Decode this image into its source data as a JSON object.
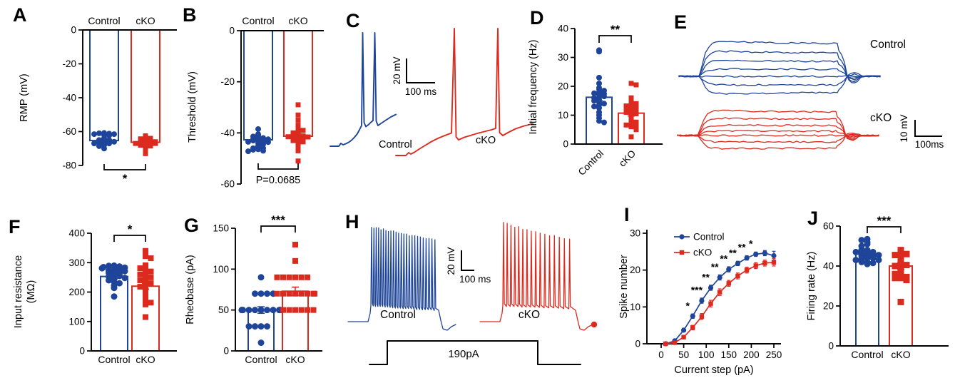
{
  "colors": {
    "control": "#1e4599",
    "cko": "#dc2a1e",
    "axis": "#000000"
  },
  "panel_letters": [
    "A",
    "B",
    "C",
    "D",
    "E",
    "F",
    "G",
    "H",
    "I",
    "J"
  ],
  "chart_data": [
    {
      "panel": "A",
      "type": "bar",
      "ylabel": "RMP (mV)",
      "ylim": [
        -80,
        0
      ],
      "yticks": [
        0,
        -20,
        -40,
        -60,
        -80
      ],
      "categories": [
        "Control",
        "cKO"
      ],
      "means": [
        -65.3,
        -66.3
      ],
      "sem": [
        0.7,
        0.7
      ],
      "sig": "*",
      "points_control": [
        -60.8,
        -61,
        -61.2,
        -61.5,
        -61.5,
        -62,
        -62.3,
        -64,
        -64.5,
        -65,
        -65,
        -65.3,
        -65.5,
        -66,
        -66,
        -66.4,
        -66.5,
        -67,
        -67,
        -67.5,
        -68,
        -68.6,
        -70
      ],
      "points_cko": [
        -62.5,
        -63,
        -63.5,
        -64,
        -64.3,
        -64.6,
        -65,
        -65,
        -65.4,
        -65.6,
        -66,
        -66,
        -66.2,
        -66.5,
        -66.6,
        -67,
        -67,
        -67.4,
        -68,
        -68,
        -68.5,
        -69,
        -70,
        -71,
        -73
      ]
    },
    {
      "panel": "B",
      "type": "bar",
      "ylabel": "Threshold (mV)",
      "ylim": [
        -60,
        0
      ],
      "yticks": [
        0,
        -20,
        -40,
        -60
      ],
      "categories": [
        "Control",
        "cKO"
      ],
      "means": [
        -42.7,
        -41.3
      ],
      "sem": [
        0.6,
        0.9
      ],
      "sig": "P=0.0685",
      "points_control": [
        -38.5,
        -40.5,
        -41,
        -41.4,
        -42,
        -42,
        -42.4,
        -42.5,
        -43,
        -43,
        -43.2,
        -43.5,
        -43.6,
        -44,
        -44.5,
        -45,
        -45.5,
        -46,
        -46,
        -46.4,
        -46.6,
        -47,
        -47.2
      ],
      "points_cko": [
        -29,
        -33,
        -35,
        -37,
        -38.5,
        -39,
        -40,
        -40,
        -40.5,
        -41,
        -41,
        -41.2,
        -41.5,
        -41.6,
        -42,
        -42,
        -42.5,
        -43,
        -43,
        -43.5,
        -44,
        -45,
        -46,
        -47,
        -51
      ]
    },
    {
      "panel": "C",
      "type": "traces",
      "labels": [
        "Control",
        "cKO"
      ],
      "scalebar": {
        "v": "20 mV",
        "h": "100 ms"
      }
    },
    {
      "panel": "D",
      "type": "bar",
      "ylabel": "Initial frequency (Hz)",
      "ylim": [
        0,
        40
      ],
      "yticks": [
        0,
        10,
        20,
        30,
        40
      ],
      "categories": [
        "Control",
        "cKO"
      ],
      "means": [
        16.2,
        10.7
      ],
      "sem": [
        1.2,
        1.0
      ],
      "sig": "**",
      "points_control": [
        32.5,
        32,
        23,
        21,
        19.5,
        19,
        18.5,
        18,
        17.6,
        17.4,
        17,
        16.5,
        16,
        15.5,
        15,
        14.5,
        14,
        13.5,
        13,
        12.5,
        11,
        10,
        9,
        8,
        7.5
      ],
      "points_cko": [
        21,
        20.5,
        16,
        15,
        14.5,
        14,
        13.6,
        13.2,
        13,
        12.5,
        12,
        12,
        11.5,
        11,
        10.5,
        10,
        9,
        8,
        7.6,
        7,
        6.6,
        6.4,
        6,
        5,
        2.5
      ]
    },
    {
      "panel": "E",
      "type": "traces",
      "labels": [
        "Control",
        "cKO"
      ],
      "scalebar": {
        "v": "10 mV",
        "h": "100ms"
      }
    },
    {
      "panel": "F",
      "type": "bar",
      "ylabel_lines": [
        "Input resistance",
        "(MΩ)"
      ],
      "ylim": [
        0,
        400
      ],
      "yticks": [
        0,
        100,
        200,
        300,
        400
      ],
      "categories": [
        "Control",
        "cKO"
      ],
      "means": [
        253,
        220
      ],
      "sem": [
        8,
        10
      ],
      "sig": "*",
      "points_control": [
        290,
        289,
        287,
        285,
        283,
        281,
        278,
        276,
        273,
        271,
        268,
        265,
        262,
        258,
        255,
        252,
        248,
        244,
        240,
        235,
        230,
        222,
        214,
        185
      ],
      "points_cko": [
        340,
        322,
        315,
        291,
        281,
        275,
        270,
        265,
        260,
        255,
        250,
        245,
        240,
        235,
        230,
        224,
        218,
        210,
        200,
        190,
        180,
        170,
        164,
        158,
        115
      ]
    },
    {
      "panel": "G",
      "type": "bar",
      "ylabel": "Rheobase (pA)",
      "ylim": [
        0,
        150
      ],
      "yticks": [
        0,
        50,
        100,
        150
      ],
      "categories": [
        "Control",
        "cKO"
      ],
      "means": [
        50,
        73
      ],
      "sem": [
        4,
        5
      ],
      "sig": "***",
      "points_control": [
        10,
        30,
        30,
        30,
        30,
        50,
        50,
        50,
        50,
        50,
        50,
        50,
        50,
        50,
        50,
        50,
        70,
        70,
        70,
        70,
        90
      ],
      "points_cko": [
        50,
        50,
        50,
        50,
        50,
        50,
        70,
        70,
        70,
        70,
        70,
        70,
        70,
        70,
        90,
        90,
        90,
        90,
        90,
        90,
        110,
        130
      ]
    },
    {
      "panel": "H",
      "type": "traces",
      "labels": [
        "Control",
        "cKO"
      ],
      "scalebar": {
        "v": "20 mV",
        "h": "100 ms"
      },
      "step_label": "190pA",
      "spike_counts": [
        25,
        16
      ]
    },
    {
      "panel": "I",
      "type": "line",
      "xlabel": "Current step (pA)",
      "ylabel": "Spike number",
      "xlim": [
        0,
        250
      ],
      "ylim": [
        0,
        30
      ],
      "xticks": [
        0,
        50,
        100,
        150,
        200,
        250
      ],
      "yticks": [
        0,
        10,
        20,
        30
      ],
      "x": [
        10,
        30,
        50,
        70,
        90,
        110,
        130,
        150,
        170,
        190,
        210,
        230,
        250
      ],
      "series": [
        {
          "name": "Control",
          "y": [
            0,
            0.8,
            3.7,
            7.5,
            11.7,
            15.2,
            18,
            20.2,
            21.8,
            23.3,
            24.3,
            24.6,
            23.9
          ],
          "sem": [
            0.2,
            0.3,
            0.5,
            0.6,
            0.7,
            0.7,
            0.7,
            0.7,
            0.6,
            0.6,
            0.6,
            0.7,
            1.2
          ]
        },
        {
          "name": "cKO",
          "y": [
            0,
            0.3,
            1.8,
            4.4,
            7.4,
            10.9,
            14,
            16.4,
            18.4,
            20,
            21.2,
            21.9,
            22.1
          ],
          "sem": [
            0.1,
            0.2,
            0.4,
            0.6,
            0.8,
            0.9,
            0.9,
            0.8,
            0.8,
            0.8,
            0.8,
            0.8,
            1.0
          ]
        }
      ],
      "sig": [
        {
          "x": 70,
          "label": "*"
        },
        {
          "x": 90,
          "label": "***"
        },
        {
          "x": 110,
          "label": "**"
        },
        {
          "x": 130,
          "label": "**"
        },
        {
          "x": 150,
          "label": "**"
        },
        {
          "x": 170,
          "label": "**"
        },
        {
          "x": 190,
          "label": "**"
        },
        {
          "x": 210,
          "label": "*"
        }
      ]
    },
    {
      "panel": "J",
      "type": "bar",
      "ylabel": "Firing rate (Hz)",
      "ylim": [
        0,
        60
      ],
      "yticks": [
        0,
        20,
        40,
        60
      ],
      "categories": [
        "Control",
        "cKO"
      ],
      "means": [
        46,
        40
      ],
      "sem": [
        1.3,
        1.7
      ],
      "sig": "***",
      "points_control": [
        41,
        41.5,
        42,
        42,
        43,
        43,
        43.5,
        44,
        44,
        44.5,
        45,
        45,
        45.5,
        46,
        46,
        46.5,
        47,
        47,
        48,
        48,
        50,
        51,
        52,
        53,
        53.5
      ],
      "points_cko": [
        22,
        33,
        34,
        34,
        34.5,
        35,
        36,
        37,
        38,
        39,
        40,
        40.5,
        41,
        42,
        44,
        45,
        45.5,
        46,
        46.5,
        48
      ]
    }
  ]
}
